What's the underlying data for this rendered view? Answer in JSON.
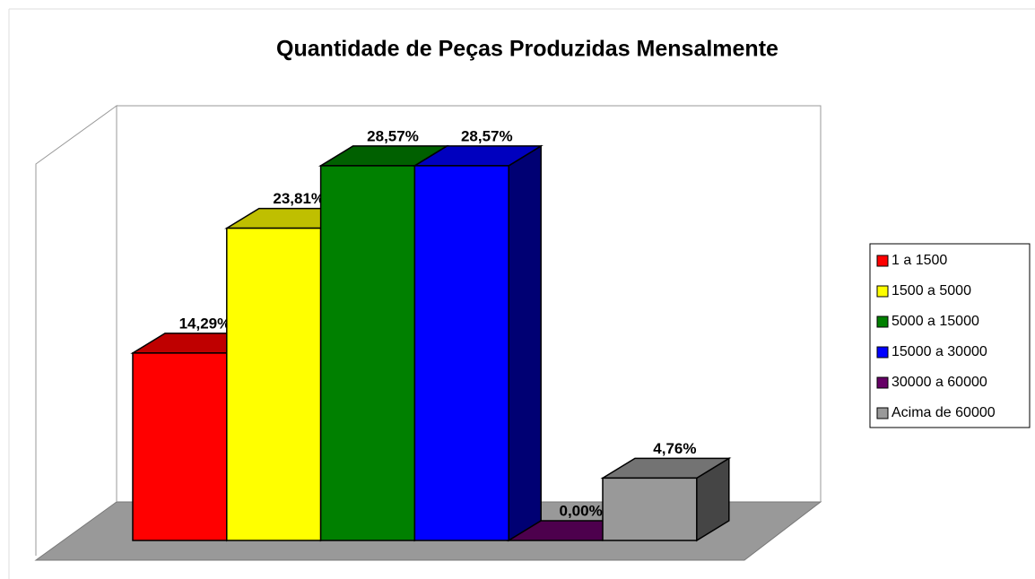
{
  "chart_data": {
    "type": "bar3d",
    "title": "Quantidade de Peças Produzidas Mensalmente",
    "series": [
      {
        "name": "1 a 1500",
        "color": "#ff0000",
        "values": [
          14.29
        ],
        "value_labels": [
          "14,29%"
        ]
      },
      {
        "name": "1500 a 5000",
        "color": "#ffff00",
        "values": [
          23.81
        ],
        "value_labels": [
          "23,81%"
        ]
      },
      {
        "name": "5000 a 15000",
        "color": "#008000",
        "values": [
          28.57
        ],
        "value_labels": [
          "28,57%"
        ]
      },
      {
        "name": "15000 a 30000",
        "color": "#0000ff",
        "values": [
          28.57
        ],
        "value_labels": [
          "28,57%"
        ]
      },
      {
        "name": "30000 a 60000",
        "color": "#660066",
        "values": [
          0
        ],
        "value_labels": [
          "0,00%"
        ]
      },
      {
        "name": "Acima de 60000",
        "color": "#999999",
        "values": [
          4.76
        ],
        "value_labels": [
          "4,76%"
        ]
      }
    ],
    "ylim": [
      0,
      30
    ],
    "legend": "right"
  }
}
